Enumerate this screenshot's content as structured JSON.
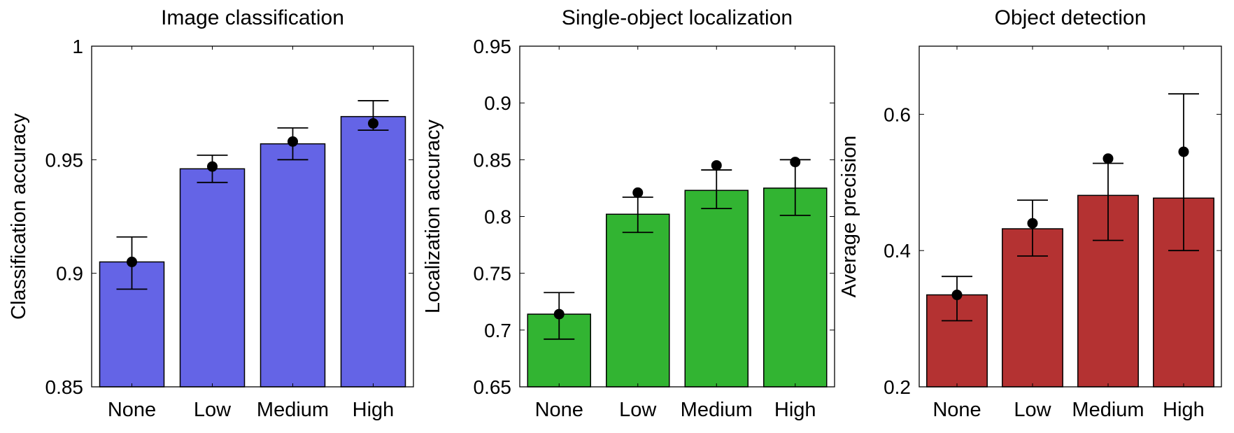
{
  "chart_data": [
    {
      "type": "bar",
      "title": "Image classification",
      "xlabel": "",
      "ylabel": "Classification accuracy",
      "categories": [
        "None",
        "Low",
        "Medium",
        "High"
      ],
      "bar_values": [
        0.905,
        0.946,
        0.957,
        0.969
      ],
      "point_values": [
        0.905,
        0.947,
        0.958,
        0.966
      ],
      "error_low": [
        0.893,
        0.94,
        0.95,
        0.963
      ],
      "error_high": [
        0.916,
        0.952,
        0.964,
        0.976
      ],
      "ylim": [
        0.85,
        1.0
      ],
      "yticks": [
        0.85,
        0.9,
        0.95,
        1.0
      ],
      "ytick_labels": [
        "0.85",
        "0.9",
        "0.95",
        "1"
      ],
      "color": "#6464e6"
    },
    {
      "type": "bar",
      "title": "Single-object localization",
      "xlabel": "",
      "ylabel": "Localization accuracy",
      "categories": [
        "None",
        "Low",
        "Medium",
        "High"
      ],
      "bar_values": [
        0.714,
        0.802,
        0.823,
        0.825
      ],
      "point_values": [
        0.714,
        0.821,
        0.845,
        0.848
      ],
      "error_low": [
        0.692,
        0.786,
        0.807,
        0.801
      ],
      "error_high": [
        0.733,
        0.817,
        0.841,
        0.85
      ],
      "ylim": [
        0.65,
        0.95
      ],
      "yticks": [
        0.65,
        0.7,
        0.75,
        0.8,
        0.85,
        0.9,
        0.95
      ],
      "ytick_labels": [
        "0.65",
        "0.7",
        "0.75",
        "0.8",
        "0.85",
        "0.9",
        "0.95"
      ],
      "color": "#32b432"
    },
    {
      "type": "bar",
      "title": "Object detection",
      "xlabel": "",
      "ylabel": "Average precision",
      "categories": [
        "None",
        "Low",
        "Medium",
        "High"
      ],
      "bar_values": [
        0.335,
        0.432,
        0.481,
        0.477
      ],
      "point_values": [
        0.335,
        0.44,
        0.535,
        0.545
      ],
      "error_low": [
        0.297,
        0.392,
        0.415,
        0.4
      ],
      "error_high": [
        0.362,
        0.474,
        0.528,
        0.63
      ],
      "ylim": [
        0.2,
        0.7
      ],
      "yticks": [
        0.2,
        0.4,
        0.6
      ],
      "ytick_labels": [
        "0.2",
        "0.4",
        "0.6"
      ],
      "color": "#b43232"
    }
  ]
}
